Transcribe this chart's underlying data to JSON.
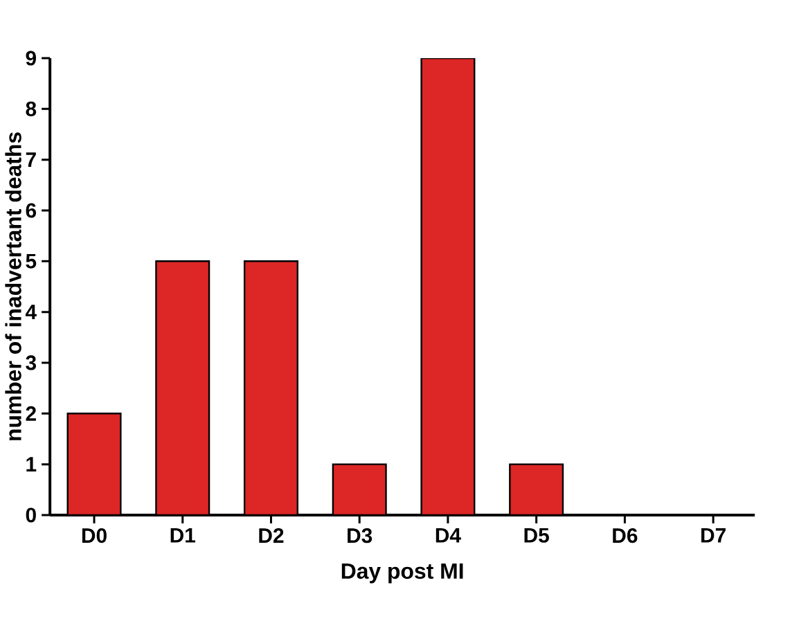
{
  "chart_data": {
    "type": "bar",
    "xlabel": "Day post MI",
    "ylabel": "number of inadvertant deaths",
    "categories": [
      "D0",
      "D1",
      "D2",
      "D3",
      "D4",
      "D5",
      "D6",
      "D7"
    ],
    "values": [
      2,
      5,
      5,
      1,
      9,
      1,
      0,
      0
    ],
    "color": "#dd2626",
    "ylim": [
      0,
      9
    ],
    "yticks": [
      0,
      1,
      2,
      3,
      4,
      5,
      6,
      7,
      8,
      9
    ],
    "grid": false
  }
}
